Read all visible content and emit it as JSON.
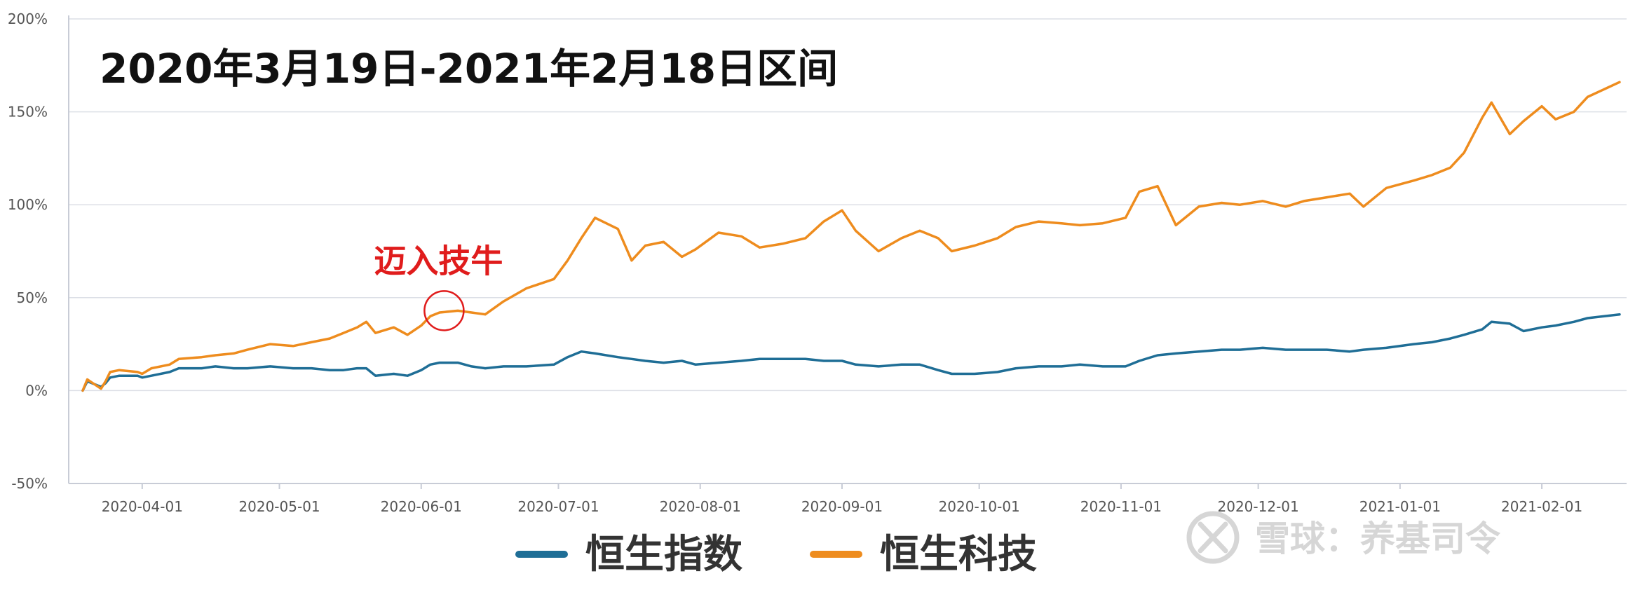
{
  "chart_data": {
    "type": "line",
    "title": "2020年3月19日-2021年2月18日区间",
    "xlabel": "",
    "ylabel": "",
    "x_start": "2020-03-19",
    "x_end": "2021-02-18",
    "ylim": [
      -50,
      200
    ],
    "yticks": [
      -50,
      0,
      50,
      100,
      150,
      200
    ],
    "ytick_labels": [
      "-50%",
      "0%",
      "50%",
      "100%",
      "150%",
      "200%"
    ],
    "xticks": [
      "2020-04-01",
      "2020-05-01",
      "2020-06-01",
      "2020-07-01",
      "2020-08-01",
      "2020-09-01",
      "2020-10-01",
      "2020-11-01",
      "2020-12-01",
      "2021-01-01",
      "2021-02-01"
    ],
    "grid": true,
    "legend_position": "bottom",
    "series": [
      {
        "name": "恒生指数",
        "color": "#1f6e96",
        "points": [
          [
            "2020-03-19",
            0
          ],
          [
            "2020-03-20",
            5
          ],
          [
            "2020-03-23",
            2
          ],
          [
            "2020-03-24",
            4
          ],
          [
            "2020-03-25",
            7
          ],
          [
            "2020-03-27",
            8
          ],
          [
            "2020-03-31",
            8
          ],
          [
            "2020-04-01",
            7
          ],
          [
            "2020-04-03",
            8
          ],
          [
            "2020-04-07",
            10
          ],
          [
            "2020-04-09",
            12
          ],
          [
            "2020-04-14",
            12
          ],
          [
            "2020-04-17",
            13
          ],
          [
            "2020-04-21",
            12
          ],
          [
            "2020-04-24",
            12
          ],
          [
            "2020-04-29",
            13
          ],
          [
            "2020-05-04",
            12
          ],
          [
            "2020-05-08",
            12
          ],
          [
            "2020-05-12",
            11
          ],
          [
            "2020-05-15",
            11
          ],
          [
            "2020-05-18",
            12
          ],
          [
            "2020-05-20",
            12
          ],
          [
            "2020-05-22",
            8
          ],
          [
            "2020-05-26",
            9
          ],
          [
            "2020-05-29",
            8
          ],
          [
            "2020-06-01",
            11
          ],
          [
            "2020-06-03",
            14
          ],
          [
            "2020-06-05",
            15
          ],
          [
            "2020-06-09",
            15
          ],
          [
            "2020-06-12",
            13
          ],
          [
            "2020-06-15",
            12
          ],
          [
            "2020-06-19",
            13
          ],
          [
            "2020-06-24",
            13
          ],
          [
            "2020-06-30",
            14
          ],
          [
            "2020-07-03",
            18
          ],
          [
            "2020-07-06",
            21
          ],
          [
            "2020-07-09",
            20
          ],
          [
            "2020-07-14",
            18
          ],
          [
            "2020-07-17",
            17
          ],
          [
            "2020-07-20",
            16
          ],
          [
            "2020-07-24",
            15
          ],
          [
            "2020-07-28",
            16
          ],
          [
            "2020-07-31",
            14
          ],
          [
            "2020-08-05",
            15
          ],
          [
            "2020-08-10",
            16
          ],
          [
            "2020-08-14",
            17
          ],
          [
            "2020-08-19",
            17
          ],
          [
            "2020-08-24",
            17
          ],
          [
            "2020-08-28",
            16
          ],
          [
            "2020-09-01",
            16
          ],
          [
            "2020-09-04",
            14
          ],
          [
            "2020-09-09",
            13
          ],
          [
            "2020-09-14",
            14
          ],
          [
            "2020-09-18",
            14
          ],
          [
            "2020-09-22",
            11
          ],
          [
            "2020-09-25",
            9
          ],
          [
            "2020-09-30",
            9
          ],
          [
            "2020-10-05",
            10
          ],
          [
            "2020-10-09",
            12
          ],
          [
            "2020-10-14",
            13
          ],
          [
            "2020-10-19",
            13
          ],
          [
            "2020-10-23",
            14
          ],
          [
            "2020-10-28",
            13
          ],
          [
            "2020-11-02",
            13
          ],
          [
            "2020-11-05",
            16
          ],
          [
            "2020-11-09",
            19
          ],
          [
            "2020-11-13",
            20
          ],
          [
            "2020-11-18",
            21
          ],
          [
            "2020-11-23",
            22
          ],
          [
            "2020-11-27",
            22
          ],
          [
            "2020-12-02",
            23
          ],
          [
            "2020-12-07",
            22
          ],
          [
            "2020-12-11",
            22
          ],
          [
            "2020-12-16",
            22
          ],
          [
            "2020-12-21",
            21
          ],
          [
            "2020-12-24",
            22
          ],
          [
            "2020-12-29",
            23
          ],
          [
            "2021-01-04",
            25
          ],
          [
            "2021-01-08",
            26
          ],
          [
            "2021-01-12",
            28
          ],
          [
            "2021-01-15",
            30
          ],
          [
            "2021-01-19",
            33
          ],
          [
            "2021-01-21",
            37
          ],
          [
            "2021-01-25",
            36
          ],
          [
            "2021-01-28",
            32
          ],
          [
            "2021-02-01",
            34
          ],
          [
            "2021-02-04",
            35
          ],
          [
            "2021-02-08",
            37
          ],
          [
            "2021-02-11",
            39
          ],
          [
            "2021-02-18",
            41
          ]
        ]
      },
      {
        "name": "恒生科技",
        "color": "#ee8c1e",
        "points": [
          [
            "2020-03-19",
            0
          ],
          [
            "2020-03-20",
            6
          ],
          [
            "2020-03-23",
            1
          ],
          [
            "2020-03-24",
            5
          ],
          [
            "2020-03-25",
            10
          ],
          [
            "2020-03-27",
            11
          ],
          [
            "2020-03-31",
            10
          ],
          [
            "2020-04-01",
            9
          ],
          [
            "2020-04-03",
            12
          ],
          [
            "2020-04-07",
            14
          ],
          [
            "2020-04-09",
            17
          ],
          [
            "2020-04-14",
            18
          ],
          [
            "2020-04-17",
            19
          ],
          [
            "2020-04-21",
            20
          ],
          [
            "2020-04-24",
            22
          ],
          [
            "2020-04-29",
            25
          ],
          [
            "2020-05-04",
            24
          ],
          [
            "2020-05-08",
            26
          ],
          [
            "2020-05-12",
            28
          ],
          [
            "2020-05-15",
            31
          ],
          [
            "2020-05-18",
            34
          ],
          [
            "2020-05-20",
            37
          ],
          [
            "2020-05-22",
            31
          ],
          [
            "2020-05-26",
            34
          ],
          [
            "2020-05-29",
            30
          ],
          [
            "2020-06-01",
            35
          ],
          [
            "2020-06-03",
            40
          ],
          [
            "2020-06-05",
            42
          ],
          [
            "2020-06-09",
            43
          ],
          [
            "2020-06-12",
            42
          ],
          [
            "2020-06-15",
            41
          ],
          [
            "2020-06-19",
            48
          ],
          [
            "2020-06-24",
            55
          ],
          [
            "2020-06-30",
            60
          ],
          [
            "2020-07-03",
            70
          ],
          [
            "2020-07-06",
            82
          ],
          [
            "2020-07-09",
            93
          ],
          [
            "2020-07-14",
            87
          ],
          [
            "2020-07-17",
            70
          ],
          [
            "2020-07-20",
            78
          ],
          [
            "2020-07-24",
            80
          ],
          [
            "2020-07-28",
            72
          ],
          [
            "2020-07-31",
            76
          ],
          [
            "2020-08-05",
            85
          ],
          [
            "2020-08-10",
            83
          ],
          [
            "2020-08-14",
            77
          ],
          [
            "2020-08-19",
            79
          ],
          [
            "2020-08-24",
            82
          ],
          [
            "2020-08-28",
            91
          ],
          [
            "2020-09-01",
            97
          ],
          [
            "2020-09-04",
            86
          ],
          [
            "2020-09-09",
            75
          ],
          [
            "2020-09-14",
            82
          ],
          [
            "2020-09-18",
            86
          ],
          [
            "2020-09-22",
            82
          ],
          [
            "2020-09-25",
            75
          ],
          [
            "2020-09-30",
            78
          ],
          [
            "2020-10-05",
            82
          ],
          [
            "2020-10-09",
            88
          ],
          [
            "2020-10-14",
            91
          ],
          [
            "2020-10-19",
            90
          ],
          [
            "2020-10-23",
            89
          ],
          [
            "2020-10-28",
            90
          ],
          [
            "2020-11-02",
            93
          ],
          [
            "2020-11-05",
            107
          ],
          [
            "2020-11-09",
            110
          ],
          [
            "2020-11-13",
            89
          ],
          [
            "2020-11-18",
            99
          ],
          [
            "2020-11-23",
            101
          ],
          [
            "2020-11-27",
            100
          ],
          [
            "2020-12-02",
            102
          ],
          [
            "2020-12-07",
            99
          ],
          [
            "2020-12-11",
            102
          ],
          [
            "2020-12-16",
            104
          ],
          [
            "2020-12-21",
            106
          ],
          [
            "2020-12-24",
            99
          ],
          [
            "2020-12-29",
            109
          ],
          [
            "2021-01-04",
            113
          ],
          [
            "2021-01-08",
            116
          ],
          [
            "2021-01-12",
            120
          ],
          [
            "2021-01-15",
            128
          ],
          [
            "2021-01-19",
            147
          ],
          [
            "2021-01-21",
            155
          ],
          [
            "2021-01-25",
            138
          ],
          [
            "2021-01-28",
            145
          ],
          [
            "2021-02-01",
            153
          ],
          [
            "2021-02-04",
            146
          ],
          [
            "2021-02-08",
            150
          ],
          [
            "2021-02-11",
            158
          ],
          [
            "2021-02-18",
            166
          ]
        ]
      }
    ],
    "annotations": [
      {
        "text": "迈入技牛",
        "date": "2020-06-06",
        "value": 43,
        "color": "#e01c1c"
      }
    ]
  },
  "watermark": "雪球：养基司令",
  "watermark_logo": "xueqiu-logo-icon"
}
